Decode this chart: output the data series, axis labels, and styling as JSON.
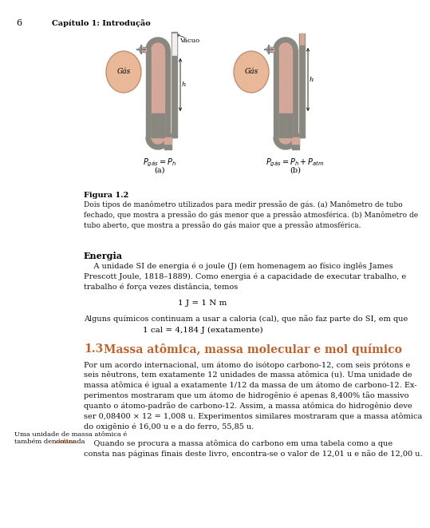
{
  "page_number": "6",
  "chapter_header": "Capítulo 1: Introdução",
  "background_color": "#ffffff",
  "figure_caption_bold": "Figura 1.2",
  "figure_caption_text": "Dois tipos de manômetro utilizados para medir pressão de gás. (a) Manômetro de tubo\nfechado, que mostra a pressão do gás menor que a pressão atmosférica. (b) Manômetro de\ntubo aberto, que mostra a pressão do gás maior que a pressão atmosférica.",
  "section_energia_title": "Energia",
  "energia_paragraph": "    A unidade SI de energia é o joule (J) (em homenagem ao físico inglês James\nPrescott Joule, 1818–1889). Como energia é a capacidade de executar trabalho, e\ntrabalho é força vezes distância, temos",
  "equation1": "1 J = 1 N m",
  "energia_paragraph2": "Alguns químicos continuam a usar a caloria (cal), que não faz parte do SI, em que",
  "equation2": "1 cal = 4,184 J (exatamente)",
  "section_13_number": "1.3",
  "section_13_title": "Massa atômica, massa molecular e mol químico",
  "section_13_color": "#c0612b",
  "section_13_paragraph": "Por um acordo internacional, um átomo do isótopo carbono-12, com seis prótons e\nseis nêutrons, tem exatamente 12 unidades de massa atômica (u). Uma unidade de\nmassa atômica é igual a exatamente 1/12 da massa de um átomo de carbono-12. Ex-\nperimentos mostraram que um átomo de hidrogênio é apenas 8,400% tão massivo\nquanto o átomo-padrão de carbono-12. Assim, a massa atômica do hidrogênio deve\nser 0,08400 × 12 = 1,008 u. Experimentos similares mostraram que a massa atômica\ndo oxigênio é 16,00 u e a do ferro, 55,85 u.",
  "section_13_paragraph2": "    Quando se procura a massa atômica do carbono em uma tabela como a que\nconsta nas páginas finais deste livro, encontra-se o valor de 12,01 u e não de 12,00 u.",
  "sidebar_line1": "Uma unidade de massa atômica é",
  "sidebar_line2": "também denominada ",
  "sidebar_italic": "dalton.",
  "tube_wall_color": "#888880",
  "tube_inner_color": "#d4a898",
  "flask_face_color": "#e8b898",
  "flask_edge_color": "#c09070",
  "mercury_color": "#888880",
  "label_gas": "Gás",
  "label_vacuo": "Vácuo",
  "label_h": "h",
  "formula_a": "$P_{gás} = P_h$",
  "formula_b": "$P_{gás} = P_h + P_{atm}$",
  "label_a": "(a)",
  "label_b": "(b)"
}
